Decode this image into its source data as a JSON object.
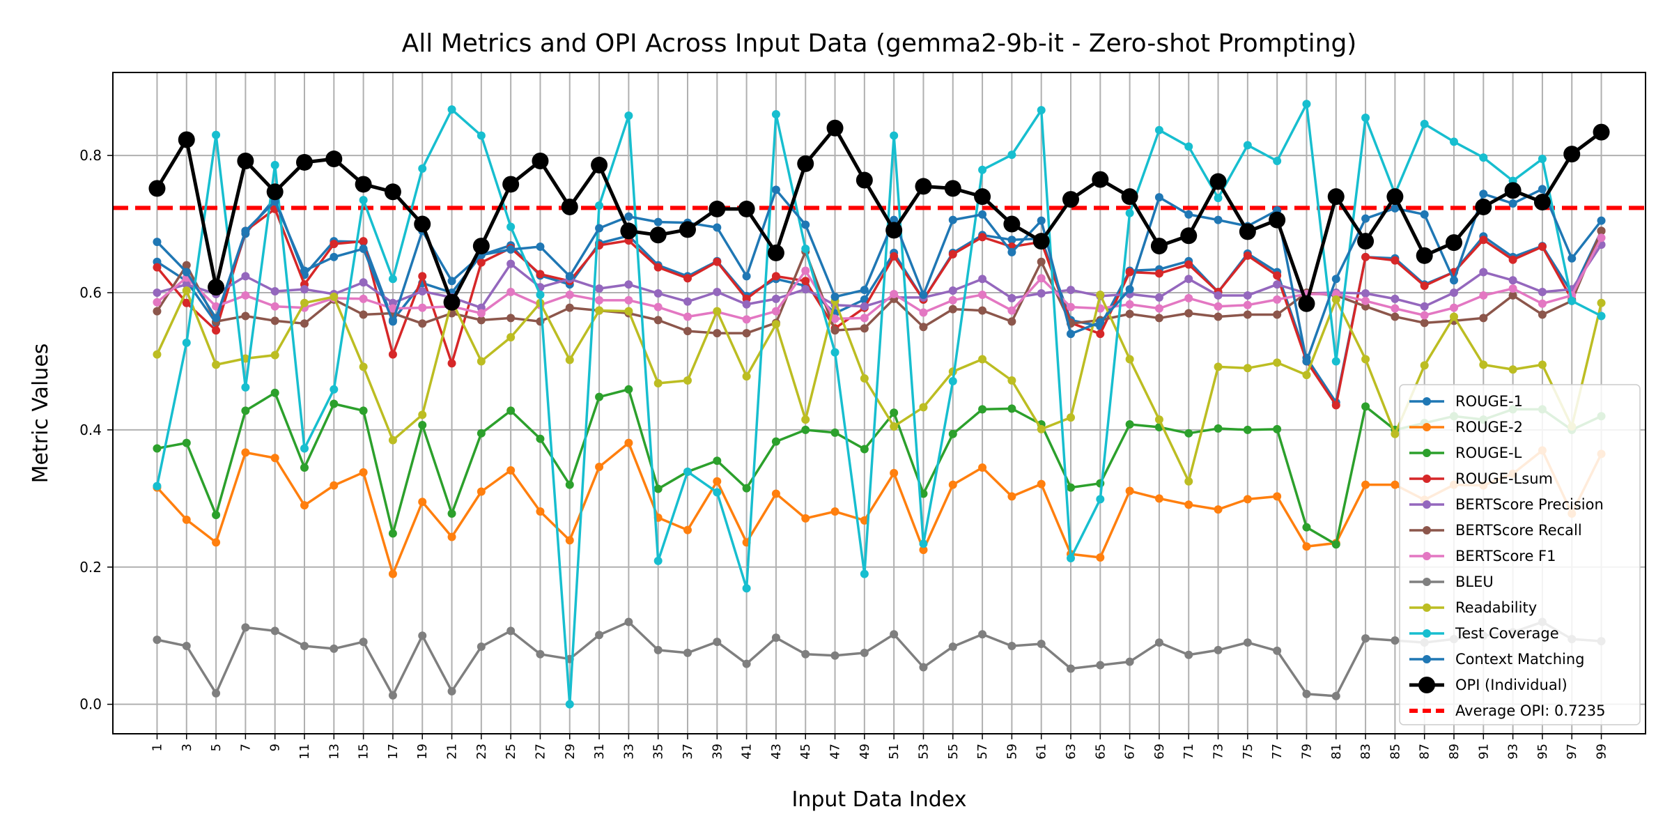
{
  "chart_data": {
    "type": "line",
    "title": "All Metrics and OPI Across Input Data (gemma2-9b-it - Zero-shot Prompting)",
    "xlabel": "Input Data Index",
    "ylabel": "Metric Values",
    "xlim": [
      -2,
      102
    ],
    "ylim": [
      -0.043,
      0.921
    ],
    "yticks": [
      0.0,
      0.2,
      0.4,
      0.6,
      0.8
    ],
    "ytick_labels": [
      "0.0",
      "0.2",
      "0.4",
      "0.6",
      "0.8"
    ],
    "grid": true,
    "legend_position": "lower-right",
    "x": [
      1,
      3,
      5,
      7,
      9,
      11,
      13,
      15,
      17,
      19,
      21,
      23,
      25,
      27,
      29,
      31,
      33,
      35,
      37,
      39,
      41,
      43,
      45,
      47,
      49,
      51,
      53,
      55,
      57,
      59,
      61,
      63,
      65,
      67,
      69,
      71,
      73,
      75,
      77,
      79,
      81,
      83,
      85,
      87,
      89,
      91,
      93,
      95,
      97,
      99
    ],
    "xtick_labels": [
      "1",
      "3",
      "5",
      "7",
      "9",
      "11",
      "13",
      "15",
      "17",
      "19",
      "21",
      "23",
      "25",
      "27",
      "29",
      "31",
      "33",
      "35",
      "37",
      "39",
      "41",
      "43",
      "45",
      "47",
      "49",
      "51",
      "53",
      "55",
      "57",
      "59",
      "61",
      "63",
      "65",
      "67",
      "69",
      "71",
      "73",
      "75",
      "77",
      "79",
      "81",
      "83",
      "85",
      "87",
      "89",
      "91",
      "93",
      "95",
      "97",
      "99"
    ],
    "series": [
      {
        "name": "ROUGE-1",
        "color": "#1f77b4",
        "values": [
          0.645,
          0.617,
          0.556,
          0.686,
          0.738,
          0.626,
          0.675,
          0.674,
          0.56,
          0.614,
          0.6,
          0.655,
          0.669,
          0.625,
          0.612,
          0.672,
          0.683,
          0.64,
          0.624,
          0.646,
          0.595,
          0.62,
          0.61,
          0.57,
          0.59,
          0.658,
          0.59,
          0.658,
          0.684,
          0.677,
          0.679,
          0.56,
          0.551,
          0.632,
          0.634,
          0.646,
          0.601,
          0.657,
          0.63,
          0.505,
          0.44,
          0.652,
          0.65,
          0.612,
          0.63,
          0.682,
          0.652,
          0.668,
          0.6,
          0.69
        ]
      },
      {
        "name": "ROUGE-2",
        "color": "#ff7f0e",
        "values": [
          0.316,
          0.269,
          0.236,
          0.367,
          0.359,
          0.29,
          0.319,
          0.338,
          0.19,
          0.295,
          0.244,
          0.31,
          0.341,
          0.281,
          0.239,
          0.346,
          0.381,
          0.272,
          0.254,
          0.325,
          0.236,
          0.307,
          0.271,
          0.281,
          0.268,
          0.337,
          0.225,
          0.32,
          0.345,
          0.303,
          0.321,
          0.219,
          0.214,
          0.311,
          0.3,
          0.291,
          0.284,
          0.299,
          0.303,
          0.23,
          0.235,
          0.32,
          0.32,
          0.298,
          0.32,
          0.319,
          0.336,
          0.37,
          0.278,
          0.365
        ]
      },
      {
        "name": "ROUGE-L",
        "color": "#2ca02c",
        "values": [
          0.373,
          0.381,
          0.276,
          0.428,
          0.454,
          0.345,
          0.438,
          0.428,
          0.249,
          0.407,
          0.278,
          0.395,
          0.428,
          0.387,
          0.32,
          0.448,
          0.459,
          0.314,
          0.339,
          0.355,
          0.315,
          0.383,
          0.4,
          0.396,
          0.372,
          0.425,
          0.307,
          0.394,
          0.43,
          0.431,
          0.408,
          0.316,
          0.322,
          0.408,
          0.404,
          0.395,
          0.402,
          0.4,
          0.401,
          0.258,
          0.233,
          0.434,
          0.4,
          0.41,
          0.42,
          0.415,
          0.43,
          0.43,
          0.4,
          0.42
        ]
      },
      {
        "name": "ROUGE-Lsum",
        "color": "#d62728",
        "values": [
          0.637,
          0.585,
          0.545,
          0.69,
          0.722,
          0.612,
          0.671,
          0.675,
          0.51,
          0.624,
          0.497,
          0.644,
          0.665,
          0.627,
          0.617,
          0.669,
          0.676,
          0.637,
          0.621,
          0.645,
          0.591,
          0.624,
          0.617,
          0.548,
          0.578,
          0.653,
          0.59,
          0.656,
          0.681,
          0.667,
          0.674,
          0.556,
          0.54,
          0.63,
          0.628,
          0.641,
          0.601,
          0.654,
          0.625,
          0.5,
          0.436,
          0.652,
          0.647,
          0.61,
          0.63,
          0.677,
          0.648,
          0.667,
          0.59,
          0.69
        ]
      },
      {
        "name": "BERTScore Precision",
        "color": "#9467bd",
        "values": [
          0.6,
          0.612,
          0.598,
          0.624,
          0.602,
          0.605,
          0.598,
          0.615,
          0.585,
          0.602,
          0.593,
          0.578,
          0.642,
          0.608,
          0.62,
          0.606,
          0.612,
          0.599,
          0.587,
          0.601,
          0.583,
          0.591,
          0.605,
          0.582,
          0.58,
          0.593,
          0.593,
          0.603,
          0.62,
          0.592,
          0.599,
          0.604,
          0.595,
          0.598,
          0.593,
          0.62,
          0.596,
          0.596,
          0.612,
          0.599,
          0.6,
          0.599,
          0.591,
          0.58,
          0.6,
          0.63,
          0.618,
          0.601,
          0.605,
          0.67
        ]
      },
      {
        "name": "BERTScore Recall",
        "color": "#8c564b",
        "values": [
          0.573,
          0.64,
          0.558,
          0.566,
          0.559,
          0.555,
          0.59,
          0.568,
          0.57,
          0.555,
          0.57,
          0.56,
          0.563,
          0.558,
          0.578,
          0.574,
          0.57,
          0.56,
          0.544,
          0.541,
          0.541,
          0.556,
          0.66,
          0.545,
          0.548,
          0.591,
          0.55,
          0.576,
          0.574,
          0.558,
          0.645,
          0.555,
          0.56,
          0.569,
          0.563,
          0.57,
          0.565,
          0.568,
          0.568,
          0.6,
          0.596,
          0.58,
          0.565,
          0.556,
          0.559,
          0.563,
          0.596,
          0.568,
          0.588,
          0.69
        ]
      },
      {
        "name": "BERTScore F1",
        "color": "#e377c2",
        "values": [
          0.586,
          0.622,
          0.58,
          0.596,
          0.58,
          0.578,
          0.592,
          0.591,
          0.577,
          0.578,
          0.58,
          0.57,
          0.601,
          0.582,
          0.597,
          0.589,
          0.589,
          0.579,
          0.565,
          0.572,
          0.561,
          0.573,
          0.632,
          0.562,
          0.563,
          0.598,
          0.571,
          0.589,
          0.597,
          0.574,
          0.621,
          0.579,
          0.577,
          0.583,
          0.577,
          0.592,
          0.58,
          0.582,
          0.59,
          0.598,
          0.598,
          0.588,
          0.577,
          0.567,
          0.578,
          0.596,
          0.606,
          0.584,
          0.596,
          0.68
        ]
      },
      {
        "name": "BLEU",
        "color": "#7f7f7f",
        "values": [
          0.094,
          0.085,
          0.016,
          0.112,
          0.107,
          0.085,
          0.081,
          0.091,
          0.013,
          0.1,
          0.019,
          0.084,
          0.107,
          0.073,
          0.066,
          0.101,
          0.12,
          0.079,
          0.075,
          0.091,
          0.059,
          0.097,
          0.073,
          0.071,
          0.075,
          0.102,
          0.054,
          0.084,
          0.102,
          0.085,
          0.088,
          0.052,
          0.057,
          0.062,
          0.09,
          0.072,
          0.079,
          0.09,
          0.078,
          0.015,
          0.012,
          0.096,
          0.093,
          0.09,
          0.095,
          0.1,
          0.105,
          0.12,
          0.095,
          0.092
        ]
      },
      {
        "name": "Readability",
        "color": "#bcbd22",
        "values": [
          0.51,
          0.603,
          0.495,
          0.504,
          0.509,
          0.585,
          0.594,
          0.492,
          0.385,
          0.422,
          0.588,
          0.5,
          0.535,
          0.585,
          0.502,
          0.574,
          0.573,
          0.468,
          0.472,
          0.573,
          0.478,
          0.554,
          0.415,
          0.588,
          0.475,
          0.405,
          0.433,
          0.485,
          0.503,
          0.472,
          0.401,
          0.418,
          0.597,
          0.503,
          0.415,
          0.325,
          0.492,
          0.49,
          0.498,
          0.48,
          0.59,
          0.503,
          0.394,
          0.494,
          0.565,
          0.495,
          0.488,
          0.495,
          0.405,
          0.585
        ]
      },
      {
        "name": "Test Coverage",
        "color": "#17becf",
        "values": [
          0.318,
          0.527,
          0.83,
          0.462,
          0.786,
          0.373,
          0.459,
          0.735,
          0.62,
          0.781,
          0.867,
          0.829,
          0.696,
          0.597,
          0.0,
          0.727,
          0.858,
          0.209,
          0.339,
          0.309,
          0.169,
          0.86,
          0.664,
          0.513,
          0.19,
          0.829,
          0.234,
          0.471,
          0.779,
          0.801,
          0.866,
          0.213,
          0.299,
          0.716,
          0.837,
          0.813,
          0.738,
          0.815,
          0.792,
          0.875,
          0.5,
          0.855,
          0.744,
          0.846,
          0.82,
          0.797,
          0.763,
          0.795,
          0.588,
          0.566
        ]
      },
      {
        "name": "Context Matching",
        "color": "#1f77b4",
        "values": [
          0.674,
          0.63,
          0.563,
          0.69,
          0.733,
          0.632,
          0.652,
          0.664,
          0.558,
          0.69,
          0.617,
          0.655,
          0.663,
          0.667,
          0.624,
          0.694,
          0.711,
          0.703,
          0.702,
          0.695,
          0.624,
          0.75,
          0.699,
          0.594,
          0.604,
          0.706,
          0.597,
          0.706,
          0.714,
          0.659,
          0.705,
          0.54,
          0.557,
          0.605,
          0.739,
          0.714,
          0.706,
          0.697,
          0.72,
          0.5,
          0.62,
          0.708,
          0.723,
          0.714,
          0.618,
          0.744,
          0.73,
          0.751,
          0.65,
          0.705
        ]
      },
      {
        "name": "OPI (Individual)",
        "color": "#000000",
        "values": [
          0.752,
          0.823,
          0.608,
          0.792,
          0.747,
          0.79,
          0.795,
          0.758,
          0.747,
          0.7,
          0.586,
          0.668,
          0.758,
          0.792,
          0.725,
          0.786,
          0.69,
          0.684,
          0.692,
          0.722,
          0.722,
          0.658,
          0.788,
          0.84,
          0.764,
          0.691,
          0.755,
          0.752,
          0.74,
          0.7,
          0.675,
          0.736,
          0.765,
          0.74,
          0.668,
          0.683,
          0.762,
          0.689,
          0.706,
          0.584,
          0.74,
          0.675,
          0.74,
          0.654,
          0.673,
          0.725,
          0.749,
          0.732,
          0.802,
          0.834
        ]
      }
    ],
    "average_line": {
      "name": "Average OPI: 0.7235",
      "value": 0.7235,
      "color": "#ff0000"
    }
  }
}
